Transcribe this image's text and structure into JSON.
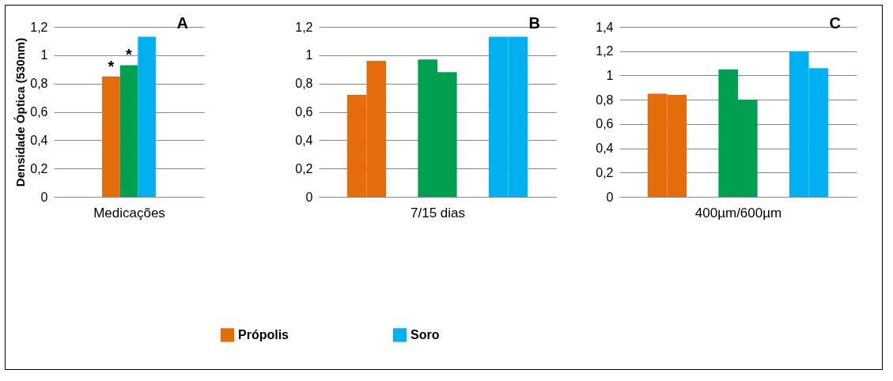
{
  "chart_data": [
    {
      "type": "bar",
      "title": "A",
      "xlabel": "Medicações",
      "ylabel": "Densidade Óptica (530nm)",
      "categories": [
        null
      ],
      "series": [
        {
          "name": "Própolis",
          "color": "#e46c0a",
          "values": [
            0.85
          ]
        },
        {
          "color": "#00a050",
          "values": [
            0.93
          ]
        },
        {
          "name": "Soro",
          "color": "#00b0f0",
          "values": [
            1.13
          ]
        }
      ],
      "ylim": [
        0,
        1.2
      ],
      "yticks": [
        {
          "value": 0,
          "label": "0"
        },
        {
          "value": 0.2,
          "label": "0,2"
        },
        {
          "value": 0.4,
          "label": "0,4"
        },
        {
          "value": 0.6,
          "label": "0,6"
        },
        {
          "value": 0.8,
          "label": "0,8"
        },
        {
          "value": 1,
          "label": "1"
        },
        {
          "value": 1.2,
          "label": "1,2"
        }
      ],
      "annotations": [
        {
          "text": "*",
          "y": 0.85
        },
        {
          "text": "*",
          "y": 0.93
        }
      ],
      "grid": "y",
      "legend": "bottom"
    },
    {
      "type": "bar",
      "title": "B",
      "xlabel": "7/15 dias",
      "categories": [
        null,
        null,
        null
      ],
      "series": [
        {
          "colors": [
            "#e46c0a",
            "#00a050",
            "#00b0f0"
          ],
          "values": [
            0.72,
            0.97,
            1.13
          ]
        },
        {
          "colors": [
            "#e46c0a",
            "#00a050",
            "#00b0f0"
          ],
          "values": [
            0.96,
            0.88,
            1.13
          ]
        }
      ],
      "ylim": [
        0,
        1.2
      ],
      "yticks": [
        {
          "value": 0,
          "label": "0"
        },
        {
          "value": 0.2,
          "label": "0,2"
        },
        {
          "value": 0.4,
          "label": "0,4"
        },
        {
          "value": 0.6,
          "label": "0,6"
        },
        {
          "value": 0.8,
          "label": "0,8"
        },
        {
          "value": 1,
          "label": "1"
        },
        {
          "value": 1.2,
          "label": "1,2"
        }
      ],
      "grid": "y"
    },
    {
      "type": "bar",
      "title": "C",
      "xlabel": "400µm/600µm",
      "categories": [
        null,
        null,
        null
      ],
      "series": [
        {
          "colors": [
            "#e46c0a",
            "#00a050",
            "#00b0f0"
          ],
          "values": [
            0.85,
            1.05,
            1.2
          ]
        },
        {
          "colors": [
            "#e46c0a",
            "#00a050",
            "#00b0f0"
          ],
          "values": [
            0.84,
            0.8,
            1.06
          ]
        }
      ],
      "ylim": [
        0,
        1.4
      ],
      "yticks": [
        {
          "value": 0,
          "label": "0"
        },
        {
          "value": 0.2,
          "label": "0,2"
        },
        {
          "value": 0.4,
          "label": "0,4"
        },
        {
          "value": 0.6,
          "label": "0,6"
        },
        {
          "value": 0.8,
          "label": "0,8"
        },
        {
          "value": 1,
          "label": "1"
        },
        {
          "value": 1.2,
          "label": "1,2"
        },
        {
          "value": 1.4,
          "label": "1,4"
        }
      ],
      "grid": "y"
    }
  ]
}
